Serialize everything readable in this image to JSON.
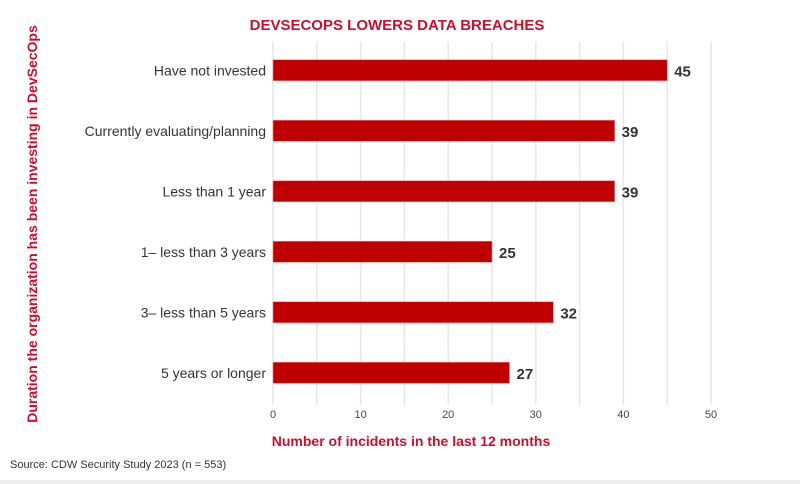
{
  "chart_data": {
    "type": "bar",
    "orientation": "horizontal",
    "title": "DEVSECOPS LOWERS DATA BREACHES",
    "categories": [
      "Have not invested",
      "Currently evaluating/planning",
      "Less than 1 year",
      "1– less than 3 years",
      "3– less than 5 years",
      "5 years or longer"
    ],
    "values": [
      45,
      39,
      39,
      25,
      32,
      27
    ],
    "xlabel": "Number of incidents in the last 12 months",
    "ylabel": "Duration the organization has been investing in DevSecOps",
    "xlim": [
      0,
      50
    ],
    "xticks": [
      0,
      10,
      20,
      30,
      40,
      50
    ],
    "grid": true,
    "grid_step": 5,
    "data_labels": true,
    "legend": "none",
    "colors": {
      "bar": "#c00000",
      "title": "#c8102e",
      "grid": "#e6e6e6"
    }
  },
  "source": "Source: CDW Security Study 2023 (n = 553)"
}
